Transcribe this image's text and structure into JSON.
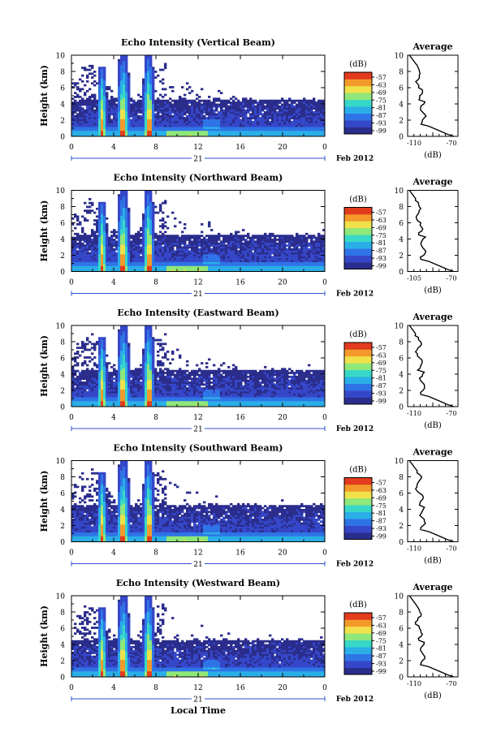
{
  "figure": {
    "colorbar_unit": "(dB)",
    "colorbar_ticks": [
      "-57",
      "-63",
      "-69",
      "-75",
      "-81",
      "-87",
      "-93",
      "-99"
    ],
    "xlabel": "Local Time",
    "date_day": "21",
    "date_month_year": "Feb 2012",
    "x_ticks": [
      "0",
      "4",
      "8",
      "12",
      "16",
      "20",
      "0"
    ],
    "y_ticks": [
      "0",
      "2",
      "4",
      "6",
      "8",
      "10"
    ],
    "ylabel": "Height (km)",
    "profile_title": "Average",
    "profile_xlabel": "(dB)"
  },
  "chart_data": [
    {
      "type": "heatmap",
      "title": "Echo Intensity (Vertical Beam)",
      "xlabel": "",
      "ylabel": "Height (km)",
      "xlim": [
        0,
        24
      ],
      "ylim": [
        0,
        10
      ],
      "zlim": [
        -99,
        -57
      ],
      "profile": {
        "title": "Average",
        "xlabel": "(dB)",
        "xlim": [
          -110,
          -70
        ],
        "xticks": [
          "-110",
          "-70"
        ]
      }
    },
    {
      "type": "heatmap",
      "title": "Echo Intensity (Northward Beam)",
      "xlabel": "",
      "ylabel": "Height (km)",
      "xlim": [
        0,
        24
      ],
      "ylim": [
        0,
        10
      ],
      "zlim": [
        -99,
        -57
      ],
      "profile": {
        "title": "Average",
        "xlabel": "(dB)",
        "xlim": [
          -105,
          -70
        ],
        "xticks": [
          "-105",
          "-70"
        ]
      }
    },
    {
      "type": "heatmap",
      "title": "Echo Intensity (Eastward Beam)",
      "xlabel": "",
      "ylabel": "Height (km)",
      "xlim": [
        0,
        24
      ],
      "ylim": [
        0,
        10
      ],
      "zlim": [
        -99,
        -57
      ],
      "profile": {
        "title": "Average",
        "xlabel": "(dB)",
        "xlim": [
          -110,
          -70
        ],
        "xticks": [
          "-110",
          "-70"
        ]
      }
    },
    {
      "type": "heatmap",
      "title": "Echo Intensity (Southward Beam)",
      "xlabel": "",
      "ylabel": "Height (km)",
      "xlim": [
        0,
        24
      ],
      "ylim": [
        0,
        10
      ],
      "zlim": [
        -99,
        -57
      ],
      "profile": {
        "title": "Average",
        "xlabel": "(dB)",
        "xlim": [
          -110,
          -70
        ],
        "xticks": [
          "-110",
          "-70"
        ]
      }
    },
    {
      "type": "heatmap",
      "title": "Echo Intensity (Westward Beam)",
      "xlabel": "Local Time",
      "ylabel": "Height (km)",
      "xlim": [
        0,
        24
      ],
      "ylim": [
        0,
        10
      ],
      "zlim": [
        -99,
        -57
      ],
      "profile": {
        "title": "Average",
        "xlabel": "(dB)",
        "xlim": [
          -110,
          -70
        ],
        "xticks": [
          "-110",
          "-70"
        ]
      }
    }
  ],
  "colors": {
    "ramp": [
      "#2b2d8c",
      "#3547c9",
      "#2f74e6",
      "#2aaee8",
      "#38d8c8",
      "#8fe87a",
      "#f0e14a",
      "#f39a2a",
      "#e23b1e"
    ],
    "background": "#ffffff",
    "axis": "#000000"
  }
}
